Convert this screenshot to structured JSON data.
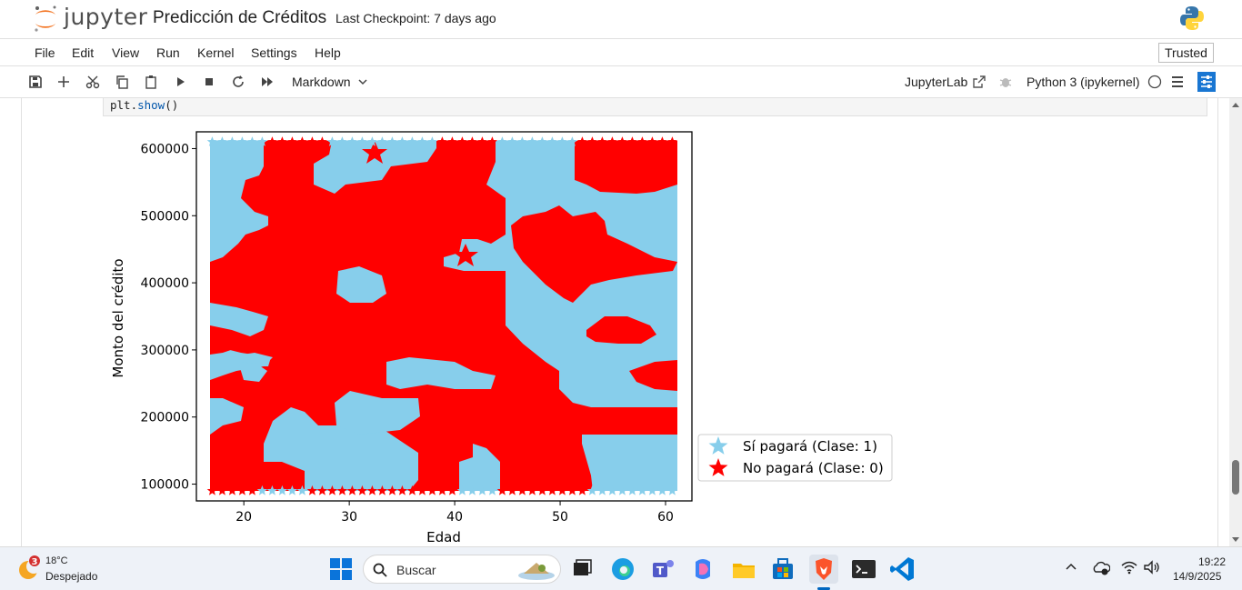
{
  "header": {
    "logo_text": "jupyter",
    "notebook_title": "Predicción de Créditos",
    "checkpoint": "Last Checkpoint: 7 days ago"
  },
  "menu": {
    "items": [
      "File",
      "Edit",
      "View",
      "Run",
      "Kernel",
      "Settings",
      "Help"
    ],
    "trusted": "Trusted"
  },
  "toolbar": {
    "cell_type": "Markdown",
    "jupyterlab": "JupyterLab",
    "kernel": "Python 3 (ipykernel)"
  },
  "code": {
    "prefix": "plt.",
    "fn": "show",
    "suffix": "()"
  },
  "chart_data": {
    "type": "scatter",
    "xlabel": "Edad",
    "ylabel": "Monto del crédito",
    "x_ticks": [
      20,
      30,
      40,
      50,
      60
    ],
    "y_ticks": [
      100000,
      200000,
      300000,
      400000,
      500000,
      600000
    ],
    "x_tick_labels": [
      "20",
      "30",
      "40",
      "50",
      "60"
    ],
    "y_tick_labels": [
      "100000",
      "200000",
      "300000",
      "400000",
      "500000",
      "600000"
    ],
    "xlim": [
      15.5,
      62.5
    ],
    "ylim": [
      75000,
      625000
    ],
    "legend": {
      "position": "outside-right-bottom",
      "entries": [
        {
          "label": "Sí pagará (Clase: 1)",
          "color": "#87CEEB",
          "marker": "star"
        },
        {
          "label": "No pagará (Clase: 0)",
          "color": "#FF0000",
          "marker": "star"
        }
      ]
    },
    "series": [
      {
        "name": "Sí pagará (Clase: 1)",
        "color": "#87CEEB",
        "x": [
          17,
          61
        ],
        "y": [
          90000,
          610000
        ]
      },
      {
        "name": "No pagará (Clase: 0)",
        "color": "#FF0000",
        "x": [
          22,
          52
        ],
        "y": [
          90000,
          610000
        ]
      }
    ]
  },
  "taskbar": {
    "weather_badge": "3",
    "weather_temp": "18°C",
    "weather_desc": "Despejado",
    "search_placeholder": "Buscar",
    "time": "19:22",
    "date": "14/9/2025"
  }
}
